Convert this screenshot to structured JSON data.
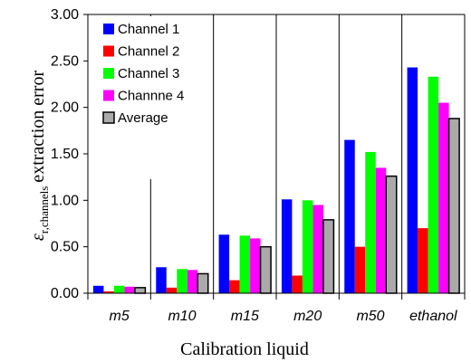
{
  "chart_data": {
    "type": "bar",
    "categories": [
      "m5",
      "m10",
      "m15",
      "m20",
      "m50",
      "ethanol"
    ],
    "series": [
      {
        "name": "Channel 1",
        "color": "#0000ff",
        "values": [
          0.08,
          0.28,
          0.63,
          1.01,
          1.65,
          2.43
        ]
      },
      {
        "name": "Channel 2",
        "color": "#ff0000",
        "values": [
          0.02,
          0.06,
          0.14,
          0.19,
          0.5,
          0.7
        ]
      },
      {
        "name": "Channel 3",
        "color": "#00ff00",
        "values": [
          0.08,
          0.26,
          0.62,
          1.0,
          1.52,
          2.33
        ]
      },
      {
        "name": "Channne 4",
        "color": "#ff00ff",
        "values": [
          0.07,
          0.25,
          0.59,
          0.95,
          1.35,
          2.05
        ]
      },
      {
        "name": "Average",
        "color": "#aaaaaa",
        "outline": "#000000",
        "values": [
          0.06,
          0.21,
          0.5,
          0.79,
          1.26,
          1.88
        ]
      }
    ],
    "ylim": [
      0,
      3.0
    ],
    "yticks": [
      "0.00",
      "0.50",
      "1.00",
      "1.50",
      "2.00",
      "2.50",
      "3.00"
    ],
    "ylabel_symbol": "ε",
    "ylabel_sub": "r,channels",
    "ylabel_rest": "extraction error",
    "xlabel": "Calibration liquid",
    "grid": "vertical category separators",
    "legend_position": "top-left"
  }
}
